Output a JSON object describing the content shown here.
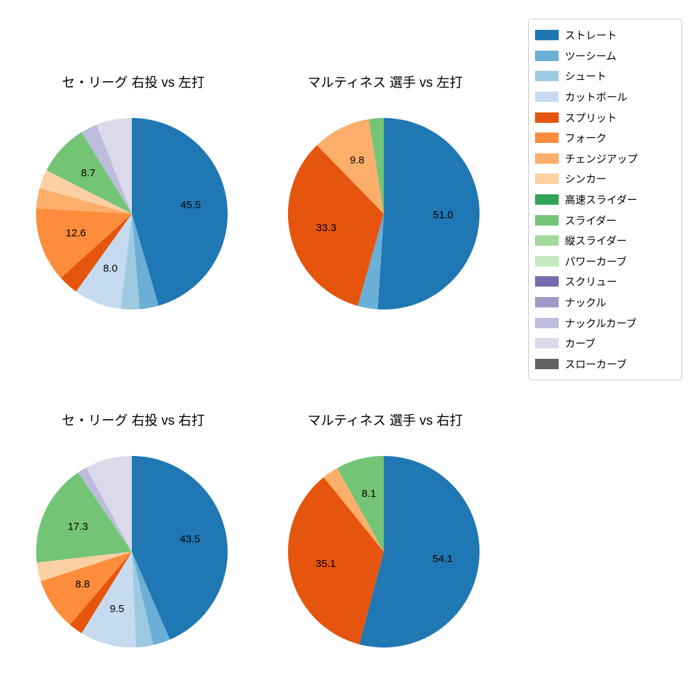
{
  "figure": {
    "background": "#ffffff"
  },
  "settings": {
    "start_angle": "top",
    "direction": "clockwise",
    "label_threshold": 8,
    "label_radius_ratio": 0.62
  },
  "legend": {
    "position": "right",
    "items": [
      {
        "label": "ストレート",
        "color": "#1f77b4"
      },
      {
        "label": "ツーシーム",
        "color": "#6baed6"
      },
      {
        "label": "シュート",
        "color": "#9ecae1"
      },
      {
        "label": "カットボール",
        "color": "#c6dbef"
      },
      {
        "label": "スプリット",
        "color": "#e6550d"
      },
      {
        "label": "フォーク",
        "color": "#fd8d3c"
      },
      {
        "label": "チェンジアップ",
        "color": "#fdae6b"
      },
      {
        "label": "シンカー",
        "color": "#fdd0a2"
      },
      {
        "label": "高速スライダー",
        "color": "#31a354"
      },
      {
        "label": "スライダー",
        "color": "#74c476"
      },
      {
        "label": "縦スライダー",
        "color": "#a1d99b"
      },
      {
        "label": "パワーカーブ",
        "color": "#c7e9c0"
      },
      {
        "label": "スクリュー",
        "color": "#756bb1"
      },
      {
        "label": "ナックル",
        "color": "#9e9ac8"
      },
      {
        "label": "ナックルカーブ",
        "color": "#bcbddc"
      },
      {
        "label": "カーブ",
        "color": "#dadaeb"
      },
      {
        "label": "スローカーブ",
        "color": "#636363"
      }
    ]
  },
  "chart_data": [
    {
      "type": "pie",
      "title": "セ・リーグ 右投 vs 左打",
      "labeled_values": [
        45.5,
        8.0,
        12.6,
        8.7
      ],
      "slices": [
        {
          "name": "ストレート",
          "value": 45.5
        },
        {
          "name": "ツーシーム",
          "value": 3.2
        },
        {
          "name": "シュート",
          "value": 3.2
        },
        {
          "name": "カットボール",
          "value": 8.0
        },
        {
          "name": "スプリット",
          "value": 3.4
        },
        {
          "name": "フォーク",
          "value": 12.6
        },
        {
          "name": "チェンジアップ",
          "value": 3.4
        },
        {
          "name": "シンカー",
          "value": 3.2
        },
        {
          "name": "スライダー",
          "value": 8.7
        },
        {
          "name": "ナックルカーブ",
          "value": 2.8
        },
        {
          "name": "カーブ",
          "value": 6.0
        }
      ]
    },
    {
      "type": "pie",
      "title": "マルティネス 選手 vs 左打",
      "labeled_values": [
        51.0,
        33.3,
        9.8
      ],
      "slices": [
        {
          "name": "ストレート",
          "value": 51.0
        },
        {
          "name": "ツーシーム",
          "value": 3.4
        },
        {
          "name": "スプリット",
          "value": 33.3
        },
        {
          "name": "チェンジアップ",
          "value": 9.8
        },
        {
          "name": "スライダー",
          "value": 2.5
        }
      ]
    },
    {
      "type": "pie",
      "title": "セ・リーグ 右投 vs 右打",
      "labeled_values": [
        43.5,
        9.5,
        8.8,
        17.3
      ],
      "slices": [
        {
          "name": "ストレート",
          "value": 43.5
        },
        {
          "name": "ツーシーム",
          "value": 2.9
        },
        {
          "name": "シュート",
          "value": 2.9
        },
        {
          "name": "カットボール",
          "value": 9.5
        },
        {
          "name": "スプリット",
          "value": 2.4
        },
        {
          "name": "フォーク",
          "value": 8.8
        },
        {
          "name": "シンカー",
          "value": 3.2
        },
        {
          "name": "スライダー",
          "value": 17.3
        },
        {
          "name": "ナックルカーブ",
          "value": 1.6
        },
        {
          "name": "カーブ",
          "value": 7.9
        }
      ]
    },
    {
      "type": "pie",
      "title": "マルティネス 選手 vs 右打",
      "labeled_values": [
        54.1,
        35.1,
        8.1
      ],
      "slices": [
        {
          "name": "ストレート",
          "value": 54.1
        },
        {
          "name": "スプリット",
          "value": 35.1
        },
        {
          "name": "チェンジアップ",
          "value": 2.7
        },
        {
          "name": "スライダー",
          "value": 8.1
        }
      ]
    }
  ]
}
